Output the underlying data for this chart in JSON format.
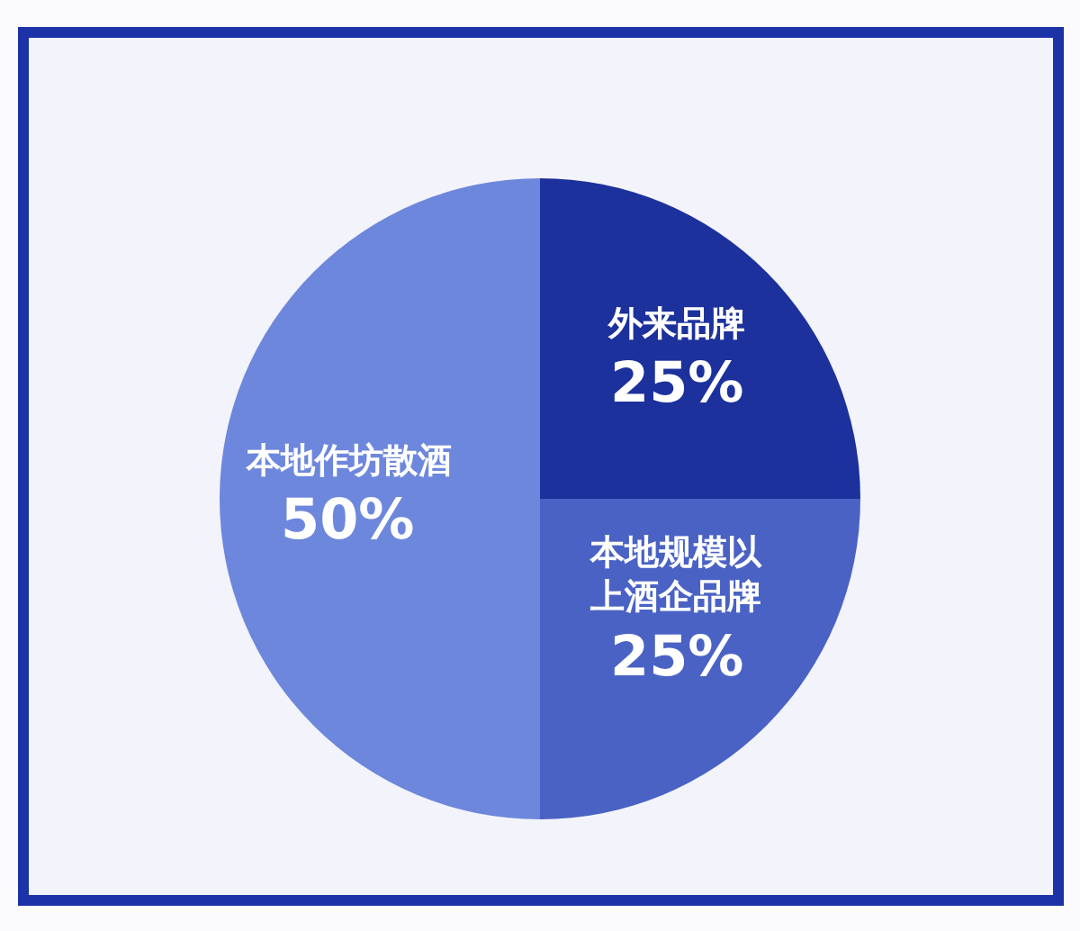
{
  "chart_data": {
    "type": "pie",
    "categories": [
      "外来品牌",
      "本地规模以上酒企品牌",
      "本地作坊散酒"
    ],
    "values": [
      25,
      25,
      50
    ],
    "value_labels": [
      "25%",
      "25%",
      "50%"
    ],
    "colors": [
      "#1c319c",
      "#4a62c4",
      "#6d87dc"
    ]
  }
}
